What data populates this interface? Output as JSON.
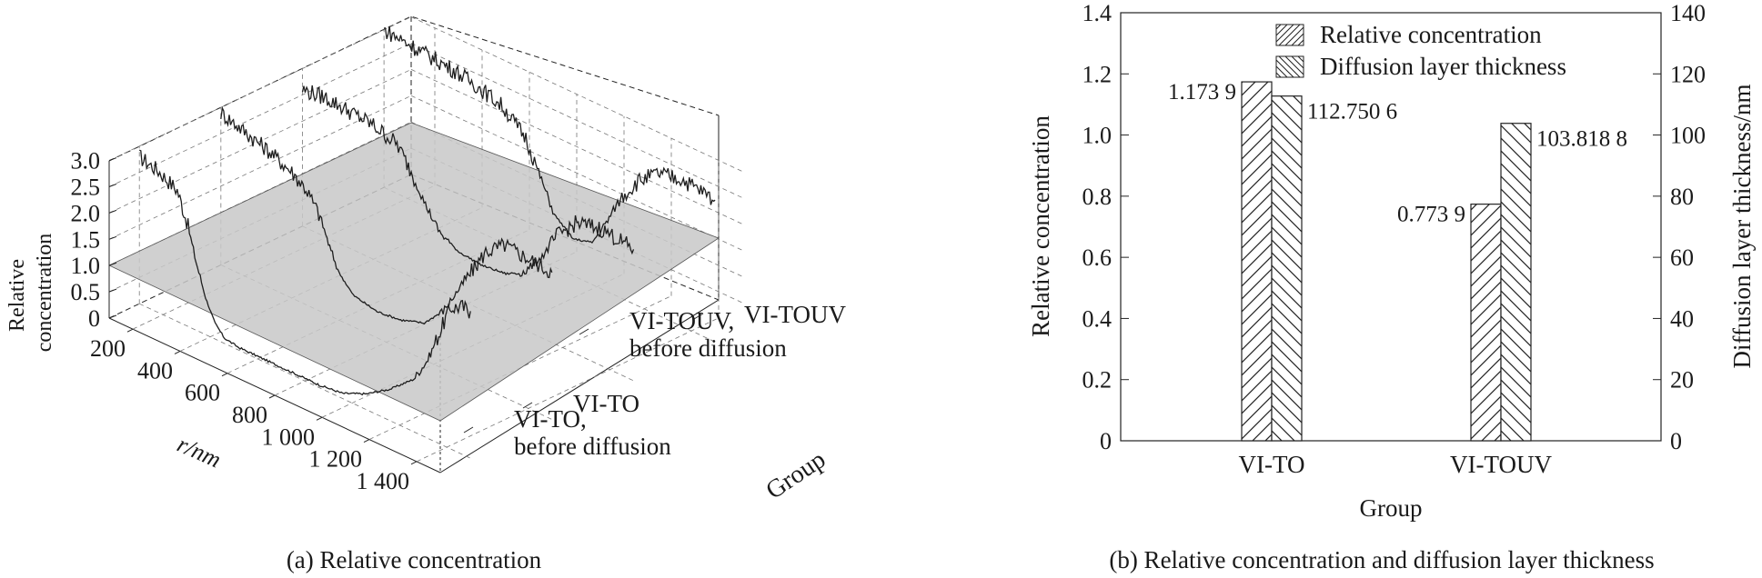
{
  "panel_a": {
    "caption": "(a) Relative concentration",
    "chart_data": {
      "type": "line",
      "projection": "3d",
      "zlabel_lines": [
        "Relative",
        "concentration"
      ],
      "xlabel": "r/nm",
      "ylabel": "Group",
      "z_ticks": [
        "3.0",
        "2.5",
        "2.0",
        "1.5",
        "1.0",
        "0.5",
        "0"
      ],
      "x_ticks": [
        "200",
        "400",
        "600",
        "800",
        "1 000",
        "1 200",
        "1 400"
      ],
      "zlim": [
        0,
        3.0
      ],
      "xlim": [
        100,
        1500
      ],
      "reference_plane_z": 1.0,
      "group_labels": [
        [
          "VI-TO,",
          "before diffusion"
        ],
        [
          "VI-TO"
        ],
        [
          "VI-TOUV,",
          "before diffusion"
        ],
        [
          "VI-TOUV"
        ]
      ],
      "series": [
        {
          "group": "VI-TO, before diffusion",
          "x": [
            100,
            180,
            260,
            300,
            340,
            380,
            420,
            460,
            520,
            620,
            760,
            860,
            960,
            1060,
            1160,
            1260,
            1320,
            1360,
            1400,
            1420,
            1460,
            1500
          ],
          "y": [
            2.8,
            2.7,
            2.5,
            2.0,
            1.3,
            0.7,
            0.3,
            0.1,
            0.05,
            0.05,
            0.05,
            0.05,
            0.1,
            0.3,
            0.6,
            1.0,
            1.5,
            2.0,
            2.5,
            2.7,
            2.8,
            2.8
          ]
        },
        {
          "group": "VI-TO",
          "x": [
            100,
            200,
            300,
            400,
            460,
            520,
            560,
            600,
            660,
            760,
            860,
            960,
            1040,
            1100,
            1160,
            1220,
            1300,
            1400,
            1500
          ],
          "y": [
            2.9,
            2.75,
            2.6,
            2.4,
            2.2,
            1.8,
            1.3,
            0.9,
            0.6,
            0.5,
            0.55,
            0.7,
            1.1,
            1.6,
            2.1,
            2.6,
            2.9,
            2.85,
            2.8
          ]
        },
        {
          "group": "VI-TOUV, before diffusion",
          "x": [
            100,
            200,
            300,
            400,
            500,
            560,
            620,
            680,
            760,
            860,
            960,
            1040,
            1120,
            1180,
            1260,
            1360,
            1440,
            1500
          ],
          "y": [
            2.6,
            2.65,
            2.6,
            2.55,
            2.4,
            2.0,
            1.5,
            1.1,
            0.9,
            0.85,
            0.9,
            1.1,
            1.6,
            2.1,
            2.5,
            2.6,
            2.55,
            2.5
          ]
        },
        {
          "group": "VI-TOUV",
          "x": [
            100,
            200,
            300,
            400,
            500,
            600,
            700,
            760,
            820,
            900,
            980,
            1040,
            1100,
            1180,
            1260,
            1360,
            1440,
            1500
          ],
          "y": [
            3.0,
            2.95,
            2.9,
            2.85,
            2.75,
            2.6,
            2.2,
            1.6,
            1.0,
            0.7,
            0.8,
            1.3,
            1.9,
            2.4,
            2.7,
            2.8,
            2.75,
            2.7
          ]
        }
      ]
    }
  },
  "panel_b": {
    "caption": "(b) Relative concentration and diffusion layer thickness",
    "chart_data": {
      "type": "bar",
      "categories": [
        "VI-TO",
        "VI-TOUV"
      ],
      "xlabel": "Group",
      "ylabel_left": "Relative concentration",
      "ylabel_right": "Diffusion layer thickness/nm",
      "ylim_left": [
        0,
        1.4
      ],
      "ylim_right": [
        0,
        140
      ],
      "yticks_left": [
        "0",
        "0.2",
        "0.4",
        "0.6",
        "0.8",
        "1.0",
        "1.2",
        "1.4"
      ],
      "yticks_right": [
        "0",
        "20",
        "40",
        "60",
        "80",
        "100",
        "120",
        "140"
      ],
      "legend_position": "top-right",
      "series": [
        {
          "name": "Relative concentration",
          "axis": "left",
          "hatch": "forward-slash",
          "values": [
            1.1739,
            0.7739
          ],
          "labels": [
            "1.173 9",
            "0.773 9"
          ]
        },
        {
          "name": "Diffusion layer thickness",
          "axis": "right",
          "hatch": "back-slash",
          "values": [
            112.7506,
            103.8188
          ],
          "labels": [
            "112.750 6",
            "103.818 8"
          ]
        }
      ]
    }
  }
}
